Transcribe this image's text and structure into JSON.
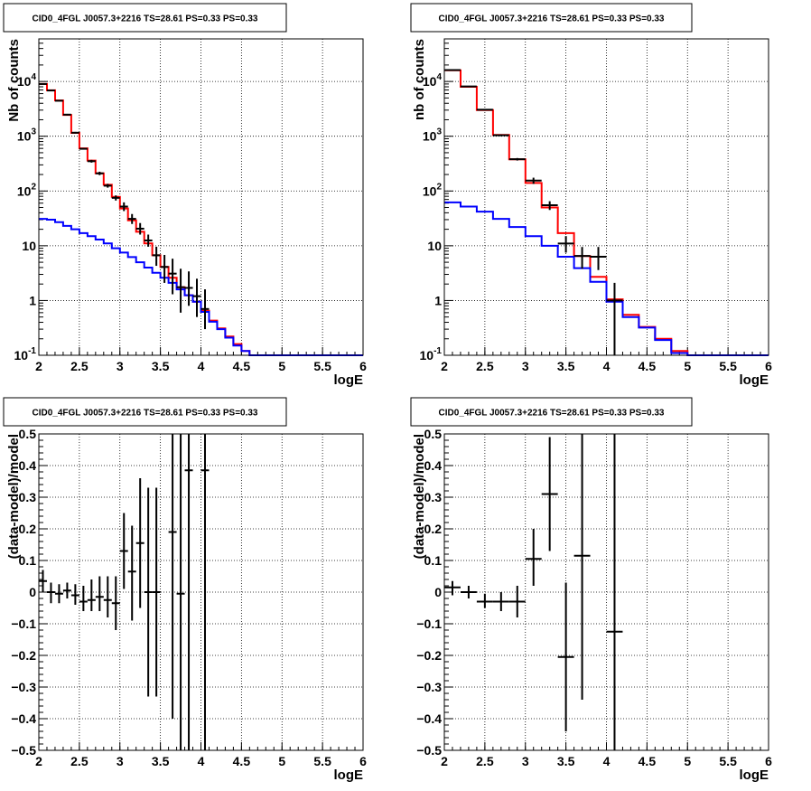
{
  "colors": {
    "data": "#000000",
    "total_model": "#ff0000",
    "background_model": "#0000ff",
    "grid": "#000000"
  },
  "chart_data": [
    {
      "type": "line",
      "title": "CID0_4FGL J0057.3+2216 TS=28.61 PS=0.33 PS=0.33",
      "xlabel": "logE",
      "ylabel": "Nb of counts",
      "xlim": [
        2,
        6
      ],
      "ylim": [
        0.1,
        60000
      ],
      "log_y": true,
      "grid": true,
      "x_ticks": [
        "2",
        "2.5",
        "3",
        "3.5",
        "4",
        "4.5",
        "5",
        "5.5",
        "6"
      ],
      "y_ticks": [
        "10^-1",
        "1",
        "10",
        "10^2",
        "10^3",
        "10^4"
      ],
      "bin_width": 0.1,
      "series": [
        {
          "style": "step-red",
          "x": [
            2.0,
            2.1,
            2.2,
            2.3,
            2.4,
            2.5,
            2.6,
            2.7,
            2.8,
            2.9,
            3.0,
            3.1,
            3.2,
            3.3,
            3.4,
            3.5,
            3.6,
            3.7,
            3.8,
            3.9,
            4.0,
            4.1,
            4.2,
            4.3,
            4.4,
            4.5,
            4.6,
            4.7,
            4.8,
            4.9,
            5.0,
            5.1,
            5.2,
            5.3,
            5.4,
            5.5,
            5.6,
            5.7,
            5.8,
            5.9
          ],
          "values": [
            9000,
            6900,
            4500,
            2450,
            1150,
            600,
            360,
            210,
            130,
            78,
            48,
            29,
            18,
            11,
            6.7,
            4.1,
            2.6,
            1.75,
            1.25,
            0.95,
            0.65,
            0.43,
            0.31,
            0.22,
            0.16,
            0.12,
            0.1,
            0.1,
            0.1,
            0.1,
            0.1,
            0.1,
            0.1,
            0.1,
            0.1,
            0.1,
            0.1,
            0.1,
            0.1,
            0.1
          ]
        },
        {
          "style": "step-blue",
          "x": [
            2.0,
            2.1,
            2.2,
            2.3,
            2.4,
            2.5,
            2.6,
            2.7,
            2.8,
            2.9,
            3.0,
            3.1,
            3.2,
            3.3,
            3.4,
            3.5,
            3.6,
            3.7,
            3.8,
            3.9,
            4.0,
            4.1,
            4.2,
            4.3,
            4.4,
            4.5,
            4.6,
            4.7,
            4.8,
            4.9,
            5.0,
            5.1,
            5.2,
            5.3,
            5.4,
            5.5,
            5.6,
            5.7,
            5.8,
            5.9
          ],
          "values": [
            31,
            30,
            27,
            23,
            20,
            17,
            15,
            13,
            11,
            9,
            7.5,
            6.2,
            5,
            4,
            3.2,
            2.6,
            2.1,
            1.6,
            1.25,
            0.95,
            0.62,
            0.41,
            0.3,
            0.21,
            0.15,
            0.12,
            0.1,
            0.1,
            0.1,
            0.1,
            0.1,
            0.1,
            0.1,
            0.1,
            0.1,
            0.1,
            0.1,
            0.1,
            0.1,
            0.1
          ]
        },
        {
          "style": "points-errorbars",
          "x": [
            2.05,
            2.15,
            2.25,
            2.35,
            2.45,
            2.55,
            2.65,
            2.75,
            2.85,
            2.95,
            3.05,
            3.15,
            3.25,
            3.35,
            3.45,
            3.55,
            3.65,
            3.75,
            3.85,
            3.95,
            4.05
          ],
          "values": [
            9000,
            6850,
            4450,
            2480,
            1160,
            590,
            350,
            210,
            125,
            75,
            52,
            31,
            20.5,
            12.5,
            6.7,
            4.1,
            3.1,
            1.75,
            1.7,
            1.2,
            0.7
          ],
          "y_low": [
            8800,
            6700,
            4350,
            2400,
            1120,
            570,
            330,
            195,
            115,
            67,
            43,
            25,
            16,
            9.6,
            4.3,
            2.1,
            1.3,
            0.6,
            0.8,
            0.5,
            0.3
          ],
          "y_high": [
            9200,
            7000,
            4550,
            2560,
            1200,
            610,
            370,
            225,
            135,
            83,
            62,
            38,
            26,
            16,
            9.6,
            6.8,
            5.8,
            3.8,
            3.4,
            2.5,
            1.6
          ]
        }
      ]
    },
    {
      "type": "line",
      "title": "CID0_4FGL J0057.3+2216 TS=28.61 PS=0.33 PS=0.33",
      "xlabel": "logE",
      "ylabel": "nb of counts",
      "xlim": [
        2,
        6
      ],
      "ylim": [
        0.1,
        60000
      ],
      "log_y": true,
      "grid": true,
      "x_ticks": [
        "2",
        "2.5",
        "3",
        "3.5",
        "4",
        "4.5",
        "5",
        "5.5",
        "6"
      ],
      "y_ticks": [
        "10^-1",
        "1",
        "10",
        "10^2",
        "10^3",
        "10^4"
      ],
      "bin_width": 0.2,
      "series": [
        {
          "style": "step-red",
          "x": [
            2.0,
            2.2,
            2.4,
            2.6,
            2.8,
            3.0,
            3.2,
            3.4,
            3.6,
            3.8,
            4.0,
            4.2,
            4.4,
            4.6,
            4.8,
            5.0,
            5.2,
            5.4,
            5.6,
            5.8
          ],
          "values": [
            16000,
            8000,
            3000,
            1060,
            380,
            140,
            50,
            17,
            6.5,
            2.7,
            1.05,
            0.55,
            0.33,
            0.2,
            0.12,
            0.1,
            0.1,
            0.1,
            0.1,
            0.1
          ]
        },
        {
          "style": "step-blue",
          "x": [
            2.0,
            2.2,
            2.4,
            2.6,
            2.8,
            3.0,
            3.2,
            3.4,
            3.6,
            3.8,
            4.0,
            4.2,
            4.4,
            4.6,
            4.8,
            5.0,
            5.2,
            5.4,
            5.6,
            5.8
          ],
          "values": [
            62,
            52,
            42,
            31,
            22,
            15,
            10,
            6.3,
            3.9,
            2.2,
            0.95,
            0.5,
            0.32,
            0.19,
            0.11,
            0.1,
            0.1,
            0.1,
            0.1,
            0.1
          ]
        },
        {
          "style": "points-errorbars",
          "x": [
            2.1,
            2.3,
            2.5,
            2.7,
            2.9,
            3.1,
            3.3,
            3.5,
            3.7,
            3.9,
            4.1
          ],
          "values": [
            16200,
            8100,
            3050,
            1040,
            380,
            155,
            55,
            11,
            6.5,
            6.3,
            1.0
          ],
          "y_low": [
            16000,
            7900,
            2950,
            1000,
            360,
            135,
            45,
            7.5,
            3.8,
            3.6,
            0.1
          ],
          "y_high": [
            16400,
            8300,
            3150,
            1080,
            400,
            175,
            65,
            15,
            9.5,
            9.5,
            2.1
          ]
        }
      ]
    },
    {
      "type": "scatter",
      "title": "CID0_4FGL J0057.3+2216 TS=28.61 PS=0.33 PS=0.33",
      "xlabel": "logE",
      "ylabel": "(data-model)/model",
      "xlim": [
        2,
        6
      ],
      "ylim": [
        -0.5,
        0.5
      ],
      "grid": true,
      "x_ticks": [
        "2",
        "2.5",
        "3",
        "3.5",
        "4",
        "4.5",
        "5",
        "5.5",
        "6"
      ],
      "y_ticks": [
        "-0.5",
        "-0.4",
        "-0.3",
        "-0.2",
        "-0.1",
        "0",
        "0.1",
        "0.2",
        "0.3",
        "0.4",
        "0.5"
      ],
      "bin_width": 0.1,
      "series": [
        {
          "style": "points-errorbars",
          "x": [
            2.05,
            2.15,
            2.25,
            2.35,
            2.45,
            2.55,
            2.65,
            2.75,
            2.85,
            2.95,
            3.05,
            3.15,
            3.25,
            3.35,
            3.45,
            3.65,
            3.75,
            3.85,
            4.05
          ],
          "values": [
            0.035,
            0.0,
            -0.005,
            0.005,
            -0.01,
            -0.03,
            -0.025,
            -0.015,
            -0.025,
            -0.035,
            0.13,
            0.065,
            0.155,
            0.0,
            0.0,
            0.19,
            -0.005,
            0.385,
            0.385
          ],
          "y_low": [
            0.0,
            -0.035,
            -0.035,
            -0.02,
            -0.04,
            -0.06,
            -0.06,
            -0.06,
            -0.08,
            -0.12,
            0.01,
            -0.09,
            -0.05,
            -0.33,
            -0.33,
            -0.4,
            -0.5,
            -0.5,
            -0.5
          ],
          "y_high": [
            0.07,
            0.03,
            0.025,
            0.03,
            0.025,
            0.02,
            0.04,
            0.05,
            0.05,
            0.05,
            0.25,
            0.21,
            0.36,
            0.33,
            0.33,
            0.5,
            0.5,
            0.5,
            0.5
          ]
        }
      ]
    },
    {
      "type": "scatter",
      "title": "CID0_4FGL J0057.3+2216 TS=28.61 PS=0.33 PS=0.33",
      "xlabel": "logE",
      "ylabel": "(data-model)/model",
      "xlim": [
        2,
        6
      ],
      "ylim": [
        -0.5,
        0.5
      ],
      "grid": true,
      "x_ticks": [
        "2",
        "2.5",
        "3",
        "3.5",
        "4",
        "4.5",
        "5",
        "5.5",
        "6"
      ],
      "y_ticks": [
        "-0.5",
        "-0.4",
        "-0.3",
        "-0.2",
        "-0.1",
        "0",
        "0.1",
        "0.2",
        "0.3",
        "0.4",
        "0.5"
      ],
      "bin_width": 0.2,
      "series": [
        {
          "style": "points-errorbars",
          "x": [
            2.1,
            2.3,
            2.5,
            2.7,
            2.9,
            3.1,
            3.3,
            3.5,
            3.7,
            4.1
          ],
          "values": [
            0.015,
            0.0,
            -0.03,
            -0.03,
            -0.03,
            0.105,
            0.31,
            -0.205,
            0.115,
            -0.125
          ],
          "y_low": [
            -0.01,
            -0.02,
            -0.05,
            -0.06,
            -0.08,
            0.02,
            0.13,
            -0.44,
            -0.34,
            -0.5
          ],
          "y_high": [
            0.035,
            0.02,
            -0.005,
            0.0,
            0.02,
            0.2,
            0.49,
            0.03,
            0.5,
            0.5
          ]
        }
      ]
    }
  ]
}
